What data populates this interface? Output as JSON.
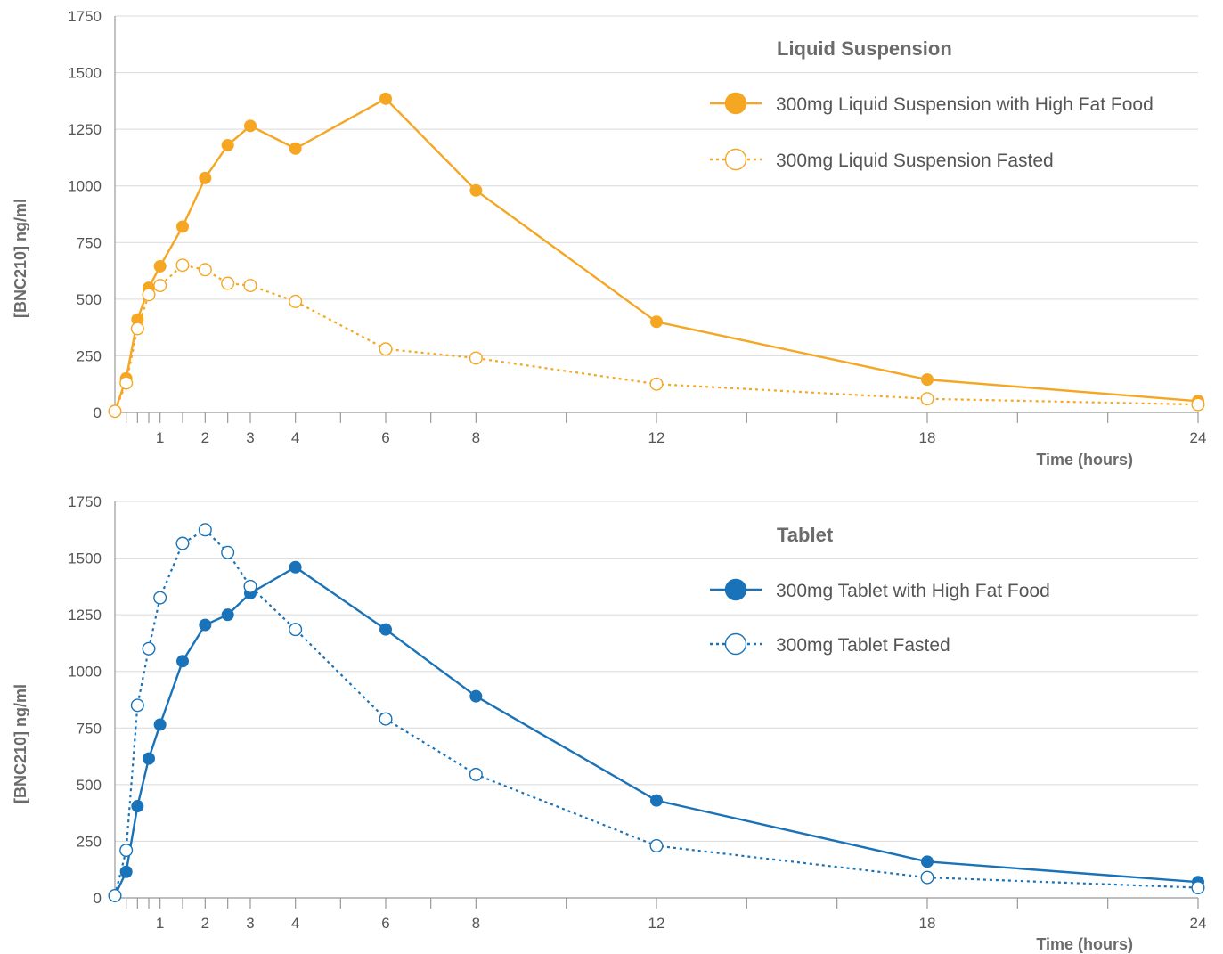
{
  "chart_data": [
    {
      "type": "line",
      "title": "Liquid Suspension",
      "xlabel": "Time (hours)",
      "ylabel": "[BNC210] ng/ml",
      "xlim": [
        0,
        24
      ],
      "ylim": [
        0,
        1750
      ],
      "x_ticks": [
        0.25,
        0.5,
        0.75,
        1,
        1.5,
        2,
        2.5,
        3,
        4,
        5,
        6,
        7,
        8,
        10,
        12,
        14,
        16,
        18,
        20,
        22,
        24
      ],
      "x_tick_labels": [
        {
          "x": 1,
          "label": "1"
        },
        {
          "x": 2,
          "label": "2"
        },
        {
          "x": 3,
          "label": "3"
        },
        {
          "x": 4,
          "label": "4"
        },
        {
          "x": 6,
          "label": "6"
        },
        {
          "x": 8,
          "label": "8"
        },
        {
          "x": 12,
          "label": "12"
        },
        {
          "x": 18,
          "label": "18"
        },
        {
          "x": 24,
          "label": "24"
        }
      ],
      "y_ticks": [
        0,
        250,
        500,
        750,
        1000,
        1250,
        1500,
        1750
      ],
      "y_tick_labels": [
        "0",
        "250",
        "500",
        "750",
        "1000",
        "1250",
        "1500",
        "1750"
      ],
      "grid": true,
      "legend_position": "top-right",
      "color": "#f5a623",
      "series": [
        {
          "name": "300mg Liquid Suspension with High Fat Food",
          "style": "solid-filled",
          "x": [
            0,
            0.25,
            0.5,
            0.75,
            1,
            1.5,
            2,
            2.5,
            3,
            4,
            6,
            8,
            12,
            18,
            24
          ],
          "y": [
            5,
            150,
            410,
            550,
            645,
            820,
            1035,
            1180,
            1265,
            1165,
            1385,
            980,
            400,
            145,
            50
          ]
        },
        {
          "name": "300mg Liquid Suspension Fasted",
          "style": "dotted-open",
          "x": [
            0,
            0.25,
            0.5,
            0.75,
            1,
            1.5,
            2,
            2.5,
            3,
            4,
            6,
            8,
            12,
            18,
            24
          ],
          "y": [
            5,
            130,
            370,
            520,
            560,
            650,
            630,
            570,
            560,
            490,
            280,
            240,
            125,
            60,
            35
          ]
        }
      ]
    },
    {
      "type": "line",
      "title": "Tablet",
      "xlabel": "Time (hours)",
      "ylabel": "[BNC210] ng/ml",
      "xlim": [
        0,
        24
      ],
      "ylim": [
        0,
        1750
      ],
      "x_ticks": [
        0.25,
        0.5,
        0.75,
        1,
        1.5,
        2,
        2.5,
        3,
        4,
        5,
        6,
        7,
        8,
        10,
        12,
        14,
        16,
        18,
        20,
        22,
        24
      ],
      "x_tick_labels": [
        {
          "x": 1,
          "label": "1"
        },
        {
          "x": 2,
          "label": "2"
        },
        {
          "x": 3,
          "label": "3"
        },
        {
          "x": 4,
          "label": "4"
        },
        {
          "x": 6,
          "label": "6"
        },
        {
          "x": 8,
          "label": "8"
        },
        {
          "x": 12,
          "label": "12"
        },
        {
          "x": 18,
          "label": "18"
        },
        {
          "x": 24,
          "label": "24"
        }
      ],
      "y_ticks": [
        0,
        250,
        500,
        750,
        1000,
        1250,
        1500,
        1750
      ],
      "y_tick_labels": [
        "0",
        "250",
        "500",
        "750",
        "1000",
        "1250",
        "1500",
        "1750"
      ],
      "grid": true,
      "legend_position": "top-right",
      "color": "#1a73b8",
      "series": [
        {
          "name": "300mg Tablet with High Fat Food",
          "style": "solid-filled",
          "x": [
            0,
            0.25,
            0.5,
            0.75,
            1,
            1.5,
            2,
            2.5,
            3,
            4,
            6,
            8,
            12,
            18,
            24
          ],
          "y": [
            10,
            115,
            405,
            615,
            765,
            1045,
            1205,
            1250,
            1345,
            1460,
            1185,
            890,
            430,
            160,
            70
          ]
        },
        {
          "name": "300mg Tablet Fasted",
          "style": "dotted-open",
          "x": [
            0,
            0.25,
            0.5,
            0.75,
            1,
            1.5,
            2,
            2.5,
            3,
            4,
            6,
            8,
            12,
            18,
            24
          ],
          "y": [
            10,
            210,
            850,
            1100,
            1325,
            1565,
            1625,
            1525,
            1375,
            1185,
            790,
            545,
            230,
            90,
            45
          ]
        }
      ]
    }
  ]
}
